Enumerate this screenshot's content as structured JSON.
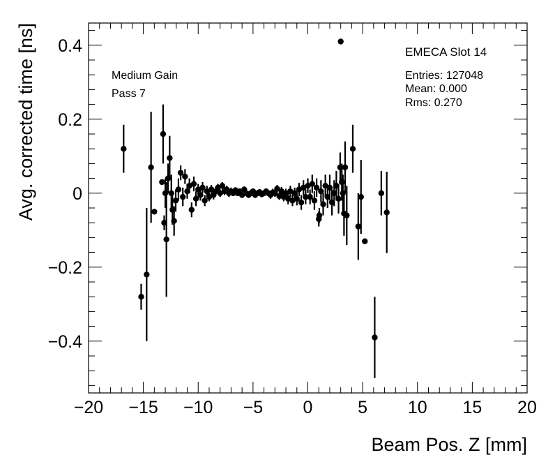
{
  "chart_data": {
    "type": "scatter",
    "title": "",
    "xlabel": "Beam Pos. Z [mm]",
    "ylabel": "Avg. corrected time [ns]",
    "xlim": [
      -20,
      20
    ],
    "ylim": [
      -0.54,
      0.46
    ],
    "xticks": [
      -20,
      -15,
      -10,
      -5,
      0,
      5,
      10,
      15,
      20
    ],
    "xtick_labels": [
      "−20",
      "−15",
      "−10",
      "−5",
      "0",
      "5",
      "10",
      "15",
      "20"
    ],
    "yticks": [
      -0.4,
      -0.2,
      0,
      0.2,
      0.4
    ],
    "ytick_labels": [
      "−0.4",
      "−0.2",
      "0",
      "0.2",
      "0.4"
    ],
    "grid": false,
    "marker_color": "#000000",
    "annotations": {
      "gain": "Medium Gain",
      "pass": "Pass 7",
      "slot": "EMECA Slot 14",
      "entries": "Entries: 127048",
      "mean": "Mean: 0.000",
      "rms": "Rms: 0.270"
    },
    "points": [
      {
        "x": -16.8,
        "y": 0.12,
        "err": 0.065
      },
      {
        "x": -15.2,
        "y": -0.28,
        "err": 0.035
      },
      {
        "x": -14.7,
        "y": -0.22,
        "err": 0.18
      },
      {
        "x": -14.3,
        "y": 0.07,
        "err": 0.15
      },
      {
        "x": -14.0,
        "y": -0.05,
        "err": 0.0
      },
      {
        "x": -13.3,
        "y": 0.03,
        "err": 0.0
      },
      {
        "x": -13.2,
        "y": 0.16,
        "err": 0.08
      },
      {
        "x": -13.1,
        "y": -0.08,
        "err": 0.02
      },
      {
        "x": -13.0,
        "y": 0.0,
        "err": 0.04
      },
      {
        "x": -12.9,
        "y": -0.125,
        "err": 0.155
      },
      {
        "x": -12.75,
        "y": 0.04,
        "err": 0.04
      },
      {
        "x": -12.6,
        "y": 0.095,
        "err": 0.06
      },
      {
        "x": -12.45,
        "y": 0.0,
        "err": 0.05
      },
      {
        "x": -12.35,
        "y": -0.045,
        "err": 0.04
      },
      {
        "x": -12.2,
        "y": -0.075,
        "err": 0.04
      },
      {
        "x": -12.05,
        "y": -0.02,
        "err": 0.03
      },
      {
        "x": -11.8,
        "y": 0.01,
        "err": 0.03
      },
      {
        "x": -11.6,
        "y": 0.055,
        "err": 0.02
      },
      {
        "x": -11.4,
        "y": -0.01,
        "err": 0.025
      },
      {
        "x": -11.2,
        "y": 0.045,
        "err": 0.02
      },
      {
        "x": -11.0,
        "y": 0.005,
        "err": 0.02
      },
      {
        "x": -10.8,
        "y": 0.02,
        "err": 0.02
      },
      {
        "x": -10.6,
        "y": -0.045,
        "err": 0.02
      },
      {
        "x": -10.4,
        "y": 0.025,
        "err": 0.02
      },
      {
        "x": -10.2,
        "y": -0.015,
        "err": 0.02
      },
      {
        "x": -10.0,
        "y": 0.01,
        "err": 0.015
      },
      {
        "x": -9.8,
        "y": -0.005,
        "err": 0.015
      },
      {
        "x": -9.6,
        "y": 0.015,
        "err": 0.015
      },
      {
        "x": -9.4,
        "y": -0.02,
        "err": 0.015
      },
      {
        "x": -9.2,
        "y": 0.005,
        "err": 0.015
      },
      {
        "x": -9.0,
        "y": -0.01,
        "err": 0.012
      },
      {
        "x": -8.8,
        "y": 0.01,
        "err": 0.012
      },
      {
        "x": -8.6,
        "y": -0.005,
        "err": 0.012
      },
      {
        "x": -8.4,
        "y": 0.005,
        "err": 0.012
      },
      {
        "x": -8.2,
        "y": 0.015,
        "err": 0.01
      },
      {
        "x": -8.0,
        "y": 0.0,
        "err": 0.01
      },
      {
        "x": -7.8,
        "y": 0.02,
        "err": 0.01
      },
      {
        "x": -7.6,
        "y": 0.005,
        "err": 0.01
      },
      {
        "x": -7.4,
        "y": 0.01,
        "err": 0.01
      },
      {
        "x": -7.2,
        "y": 0.0,
        "err": 0.01
      },
      {
        "x": -7.0,
        "y": 0.005,
        "err": 0.01
      },
      {
        "x": -6.8,
        "y": 0.0,
        "err": 0.008
      },
      {
        "x": -6.6,
        "y": 0.008,
        "err": 0.008
      },
      {
        "x": -6.4,
        "y": 0.0,
        "err": 0.008
      },
      {
        "x": -6.2,
        "y": 0.005,
        "err": 0.008
      },
      {
        "x": -6.0,
        "y": -0.005,
        "err": 0.008
      },
      {
        "x": -5.8,
        "y": 0.01,
        "err": 0.008
      },
      {
        "x": -5.6,
        "y": 0.0,
        "err": 0.008
      },
      {
        "x": -5.4,
        "y": -0.005,
        "err": 0.008
      },
      {
        "x": -5.2,
        "y": 0.0,
        "err": 0.008
      },
      {
        "x": -5.0,
        "y": 0.005,
        "err": 0.008
      },
      {
        "x": -4.8,
        "y": -0.005,
        "err": 0.008
      },
      {
        "x": -4.6,
        "y": 0.0,
        "err": 0.008
      },
      {
        "x": -4.4,
        "y": 0.003,
        "err": 0.008
      },
      {
        "x": -4.2,
        "y": -0.003,
        "err": 0.008
      },
      {
        "x": -4.0,
        "y": 0.0,
        "err": 0.008
      },
      {
        "x": -3.8,
        "y": 0.005,
        "err": 0.008
      },
      {
        "x": -3.6,
        "y": 0.0,
        "err": 0.008
      },
      {
        "x": -3.4,
        "y": -0.005,
        "err": 0.01
      },
      {
        "x": -3.2,
        "y": 0.002,
        "err": 0.01
      },
      {
        "x": -3.0,
        "y": 0.0,
        "err": 0.01
      },
      {
        "x": -2.8,
        "y": 0.012,
        "err": 0.01
      },
      {
        "x": -2.6,
        "y": -0.008,
        "err": 0.01
      },
      {
        "x": -2.4,
        "y": 0.005,
        "err": 0.012
      },
      {
        "x": -2.2,
        "y": -0.01,
        "err": 0.012
      },
      {
        "x": -2.0,
        "y": 0.0,
        "err": 0.012
      },
      {
        "x": -1.8,
        "y": -0.015,
        "err": 0.015
      },
      {
        "x": -1.6,
        "y": 0.005,
        "err": 0.015
      },
      {
        "x": -1.4,
        "y": -0.02,
        "err": 0.015
      },
      {
        "x": -1.2,
        "y": 0.0,
        "err": 0.015
      },
      {
        "x": -1.0,
        "y": -0.015,
        "err": 0.018
      },
      {
        "x": -0.8,
        "y": 0.01,
        "err": 0.018
      },
      {
        "x": -0.6,
        "y": -0.025,
        "err": 0.02
      },
      {
        "x": -0.4,
        "y": 0.015,
        "err": 0.02
      },
      {
        "x": -0.2,
        "y": -0.01,
        "err": 0.02
      },
      {
        "x": 0.0,
        "y": 0.02,
        "err": 0.02
      },
      {
        "x": 0.2,
        "y": -0.01,
        "err": 0.02
      },
      {
        "x": 0.4,
        "y": 0.025,
        "err": 0.025
      },
      {
        "x": 0.6,
        "y": -0.02,
        "err": 0.025
      },
      {
        "x": 0.8,
        "y": 0.015,
        "err": 0.025
      },
      {
        "x": 1.0,
        "y": -0.07,
        "err": 0.02
      },
      {
        "x": 1.05,
        "y": -0.06,
        "err": 0.02
      },
      {
        "x": 1.2,
        "y": 0.005,
        "err": 0.03
      },
      {
        "x": 1.4,
        "y": -0.03,
        "err": 0.03
      },
      {
        "x": 1.6,
        "y": 0.02,
        "err": 0.03
      },
      {
        "x": 1.8,
        "y": -0.01,
        "err": 0.03
      },
      {
        "x": 2.0,
        "y": 0.015,
        "err": 0.035
      },
      {
        "x": 2.2,
        "y": -0.025,
        "err": 0.035
      },
      {
        "x": 2.4,
        "y": 0.0,
        "err": 0.035
      },
      {
        "x": 2.6,
        "y": 0.02,
        "err": 0.04
      },
      {
        "x": 2.8,
        "y": -0.015,
        "err": 0.04
      },
      {
        "x": 2.95,
        "y": 0.07,
        "err": 0.04
      },
      {
        "x": 3.0,
        "y": 0.41,
        "err": 0.0
      },
      {
        "x": 3.1,
        "y": 0.03,
        "err": 0.05
      },
      {
        "x": 3.2,
        "y": 0.0,
        "err": 0.05
      },
      {
        "x": 3.3,
        "y": -0.055,
        "err": 0.06
      },
      {
        "x": 3.4,
        "y": 0.07,
        "err": 0.07
      },
      {
        "x": 3.55,
        "y": -0.06,
        "err": 0.08
      },
      {
        "x": 4.1,
        "y": 0.12,
        "err": 0.065
      },
      {
        "x": 4.6,
        "y": -0.09,
        "err": 0.09
      },
      {
        "x": 4.85,
        "y": -0.01,
        "err": 0.1
      },
      {
        "x": 5.2,
        "y": -0.13,
        "err": 0.0
      },
      {
        "x": 6.1,
        "y": -0.39,
        "err": 0.11
      },
      {
        "x": 6.7,
        "y": 0.0,
        "err": 0.06
      },
      {
        "x": 7.2,
        "y": -0.052,
        "err": 0.11
      }
    ]
  }
}
